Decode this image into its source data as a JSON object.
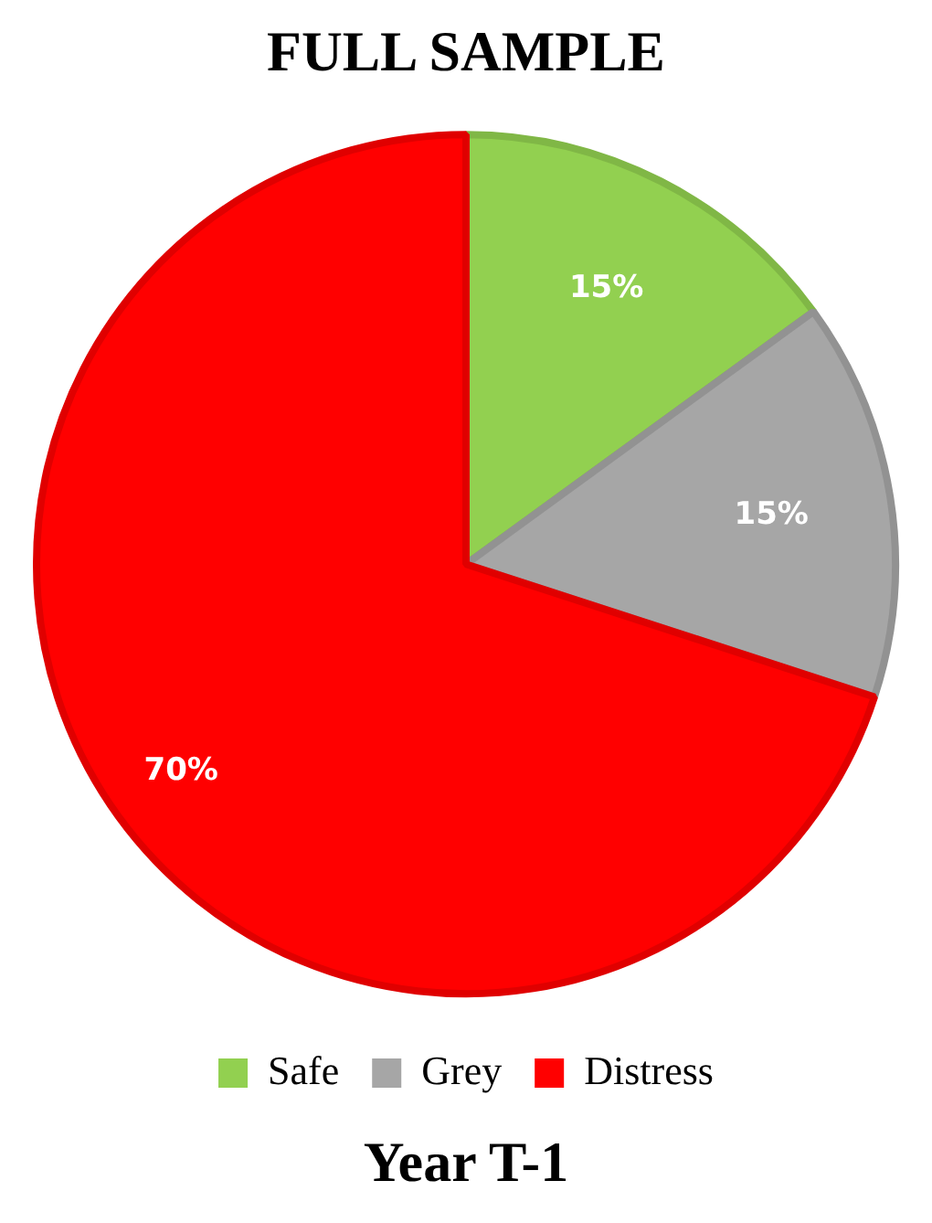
{
  "chart_data": {
    "type": "pie",
    "title": "FULL SAMPLE",
    "categories": [
      "Safe",
      "Grey",
      "Distress"
    ],
    "values": [
      15,
      15,
      70
    ],
    "colors": [
      "#92d050",
      "#a6a6a6",
      "#ff0000"
    ],
    "value_labels": [
      "15%",
      "15%",
      "70%"
    ],
    "legend": "bottom",
    "annotations": [
      "Year T-1"
    ]
  }
}
